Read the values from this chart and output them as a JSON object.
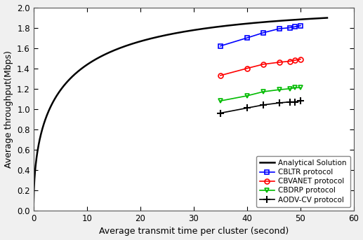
{
  "title": "",
  "xlabel": "Average transmit time per cluster (second)",
  "ylabel": "Average throughput(Mbps)",
  "xlim": [
    0,
    60
  ],
  "ylim": [
    0,
    2
  ],
  "xticks": [
    0,
    10,
    20,
    30,
    40,
    50,
    60
  ],
  "yticks": [
    0,
    0.2,
    0.4,
    0.6,
    0.8,
    1.0,
    1.2,
    1.4,
    1.6,
    1.8,
    2.0
  ],
  "analytical_x_start": 0.0,
  "analytical_x_end": 55,
  "analytical_n_points": 1000,
  "analytical_color": "#000000",
  "analytical_label": "Analytical Solution",
  "analytical_A": 2.0,
  "analytical_k": 0.13,
  "cbltr_x": [
    35,
    40,
    43,
    46,
    48,
    49,
    50
  ],
  "cbltr_y": [
    1.62,
    1.7,
    1.75,
    1.79,
    1.8,
    1.81,
    1.82
  ],
  "cbltr_color": "#0000ff",
  "cbltr_marker": "s",
  "cbltr_label": "CBLTR protocol",
  "cbvanet_x": [
    35,
    40,
    43,
    46,
    48,
    49,
    50
  ],
  "cbvanet_y": [
    1.33,
    1.4,
    1.44,
    1.46,
    1.47,
    1.48,
    1.49
  ],
  "cbvanet_color": "#ff0000",
  "cbvanet_marker": "o",
  "cbvanet_label": "CBVANET protocol",
  "cbdrp_x": [
    35,
    40,
    43,
    46,
    48,
    49,
    50
  ],
  "cbdrp_y": [
    1.08,
    1.13,
    1.17,
    1.19,
    1.2,
    1.21,
    1.21
  ],
  "cbdrp_color": "#00bb00",
  "cbdrp_marker": "v",
  "cbdrp_label": "CBDRP protocol",
  "aodv_x": [
    35,
    40,
    43,
    46,
    48,
    49,
    50
  ],
  "aodv_y": [
    0.96,
    1.01,
    1.04,
    1.06,
    1.07,
    1.07,
    1.08
  ],
  "aodv_color": "#000000",
  "aodv_marker": "+",
  "aodv_label": "AODV-CV protocol",
  "legend_loc": "lower right",
  "background_color": "#f0f0f0",
  "figsize": [
    5.17,
    3.43
  ],
  "dpi": 100
}
